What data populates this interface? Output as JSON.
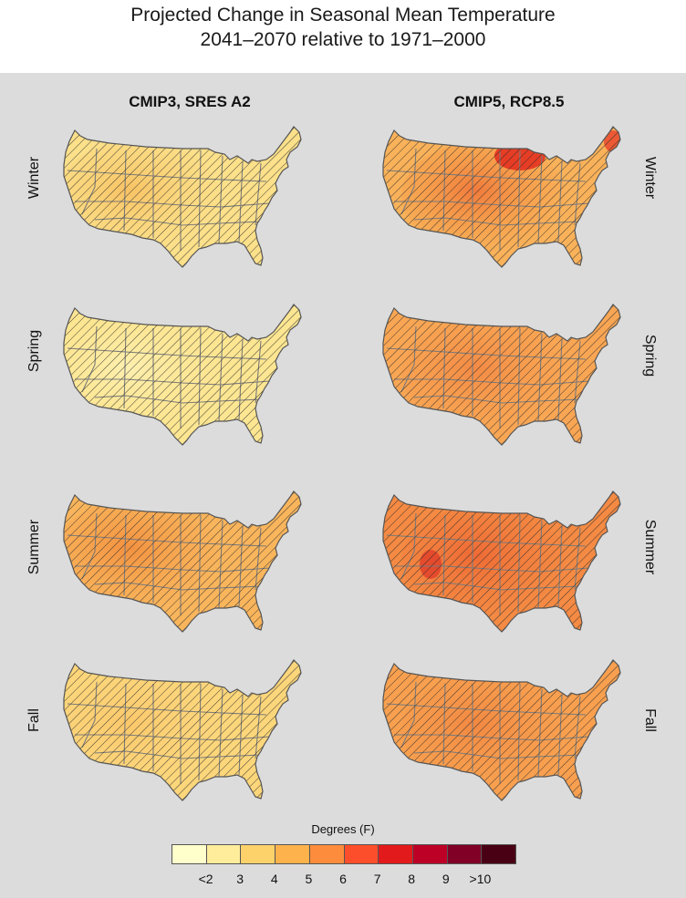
{
  "title": {
    "line1": "Projected Change in Seasonal Mean Temperature",
    "line2": "2041–2070 relative to 1971–2000"
  },
  "columns": [
    "CMIP3, SRES A2",
    "CMIP5, RCP8.5"
  ],
  "seasons": [
    "Winter",
    "Spring",
    "Summer",
    "Fall"
  ],
  "legend": {
    "title": "Degrees (F)",
    "colors": [
      "#ffffcc",
      "#ffed9c",
      "#fed26b",
      "#feb24c",
      "#fd8d3c",
      "#fc4e2a",
      "#e31a1c",
      "#bd0026",
      "#800026",
      "#4a0014"
    ],
    "ticks": [
      "<2",
      "3",
      "4",
      "5",
      "6",
      "7",
      "8",
      "9",
      ">10"
    ]
  },
  "maps": [
    {
      "model": "CMIP3, SRES A2",
      "season": "Winter",
      "base": "#fce08a",
      "hot": [
        "#f8c263",
        "#fad478"
      ],
      "hot2": null
    },
    {
      "model": "CMIP5, RCP8.5",
      "season": "Winter",
      "base": "#f9b25a",
      "hot": [
        "#f07a3c",
        "#f5973f"
      ],
      "hot2": "#e32a1d"
    },
    {
      "model": "CMIP3, SRES A2",
      "season": "Spring",
      "base": "#fde692",
      "hot": [
        "#fdf0b0",
        "#fce592"
      ],
      "hot2": null
    },
    {
      "model": "CMIP5, RCP8.5",
      "season": "Spring",
      "base": "#f9a654",
      "hot": [
        "#f38a45",
        "#f79a4b"
      ],
      "hot2": null
    },
    {
      "model": "CMIP3, SRES A2",
      "season": "Summer",
      "base": "#f9b55c",
      "hot": [
        "#f3913f",
        "#f7a24c"
      ],
      "hot2": null
    },
    {
      "model": "CMIP5, RCP8.5",
      "season": "Summer",
      "base": "#f48a43",
      "hot": [
        "#ee6a35",
        "#f27a3a"
      ],
      "hot2": "#e2422a"
    },
    {
      "model": "CMIP3, SRES A2",
      "season": "Fall",
      "base": "#fcd67a",
      "hot": [
        "#fbc86a",
        "#fcd27c"
      ],
      "hot2": null
    },
    {
      "model": "CMIP5, RCP8.5",
      "season": "Fall",
      "base": "#f8a04f",
      "hot": [
        "#f28842",
        "#f59549"
      ],
      "hot2": null
    }
  ]
}
